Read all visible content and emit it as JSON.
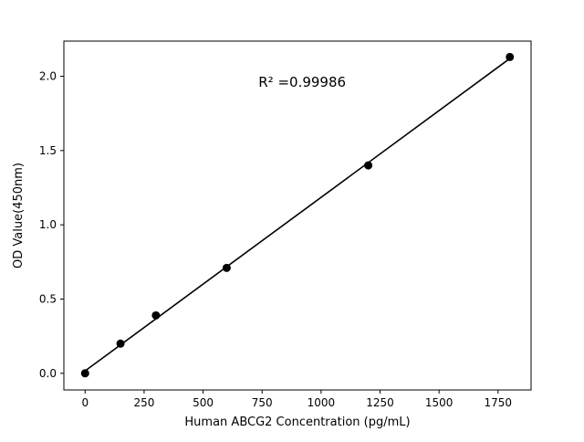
{
  "chart_data": {
    "type": "scatter",
    "title": "",
    "xlabel": "Human ABCG2 Concentration (pg/mL)",
    "ylabel": "OD Value(450nm)",
    "annotation": "R² =0.99986",
    "annotation_xy": [
      920,
      1.93
    ],
    "x": [
      0,
      150,
      300,
      600,
      1200,
      1800
    ],
    "y": [
      0.0,
      0.2,
      0.39,
      0.71,
      1.4,
      2.13
    ],
    "line": true,
    "grid": false,
    "legend": "none",
    "xlim": [
      -90,
      1890
    ],
    "ylim": [
      -0.112,
      2.237
    ],
    "xticks": [
      0,
      250,
      500,
      750,
      1000,
      1250,
      1500,
      1750
    ],
    "yticks": [
      0.0,
      0.5,
      1.0,
      1.5,
      2.0
    ],
    "point_color": "#000000",
    "line_color": "#000000",
    "background": "#ffffff"
  }
}
